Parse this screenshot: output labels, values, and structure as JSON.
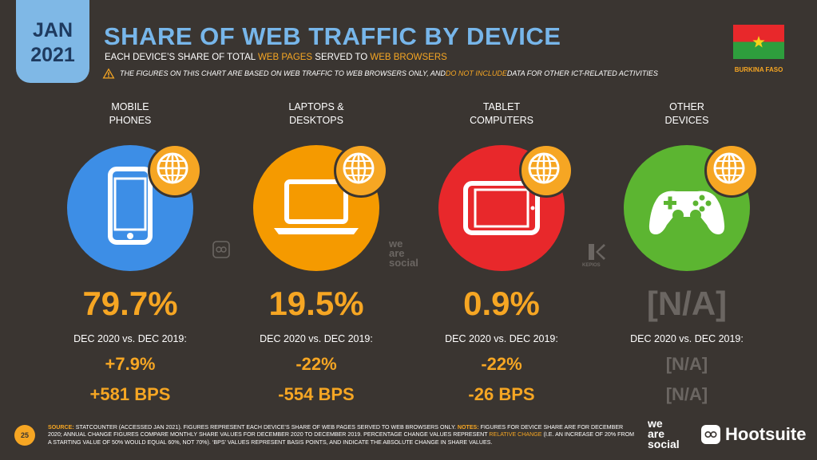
{
  "header": {
    "month": "JAN",
    "year": "2021",
    "title": "SHARE OF WEB TRAFFIC BY DEVICE",
    "subtitle_prefix": "EACH DEVICE’S SHARE OF TOTAL ",
    "subtitle_hl1": "WEB PAGES",
    "subtitle_mid": " SERVED TO ",
    "subtitle_hl2": "WEB BROWSERS",
    "note_prefix": "THE FIGURES ON THIS CHART ARE BASED ON WEB TRAFFIC TO WEB BROWSERS ONLY, AND ",
    "note_hl": "DO NOT INCLUDE",
    "note_suffix": " DATA FOR OTHER ICT-RELATED ACTIVITIES"
  },
  "country": {
    "label": "BURKINA FASO"
  },
  "comparison_label": "DEC 2020 vs. DEC 2019:",
  "devices": [
    {
      "label": "MOBILE\nPHONES",
      "share": "79.7%",
      "change": "+7.9%",
      "bps": "+581 BPS",
      "color": "#3d8ee6",
      "icon": "mobile-phone-icon"
    },
    {
      "label": "LAPTOPS &\nDESKTOPS",
      "share": "19.5%",
      "change": "-22%",
      "bps": "-554 BPS",
      "color": "#f59a00",
      "icon": "laptop-icon"
    },
    {
      "label": "TABLET\nCOMPUTERS",
      "share": "0.9%",
      "change": "-22%",
      "bps": "-26 BPS",
      "color": "#e8282b",
      "icon": "tablet-icon"
    },
    {
      "label": "OTHER\nDEVICES",
      "share": "[N/A]",
      "change": "[N/A]",
      "bps": "[N/A]",
      "color": "#5cb531",
      "icon": "gamepad-icon"
    }
  ],
  "watermarks": {
    "wearesocial": "we\nare\nsocial",
    "kepios": "KEPIOS"
  },
  "footer": {
    "page": "25",
    "source_key": "SOURCE:",
    "source_text": " STATCOUNTER (ACCESSED JAN 2021). FIGURES REPRESENT EACH DEVICE’S SHARE OF WEB PAGES SERVED TO WEB BROWSERS ONLY. ",
    "notes_key": "NOTES:",
    "notes_text": " FIGURES FOR DEVICE SHARE ARE FOR DECEMBER 2020; ANNUAL CHANGE FIGURES COMPARE MONTHLY SHARE VALUES FOR DECEMBER 2020 TO DECEMBER 2019. PERCENTAGE CHANGE VALUES REPRESENT ",
    "notes_hl": "RELATIVE CHANGE",
    "notes_end": " (I.E. AN INCREASE OF 20% FROM A STARTING VALUE OF 50% WOULD EQUAL 60%, NOT 70%). ‘BPS’ VALUES REPRESENT BASIS POINTS, AND INDICATE THE ABSOLUTE CHANGE IN SHARE VALUES.",
    "brand1": "we\nare\nsocial",
    "brand2": "Hootsuite"
  }
}
